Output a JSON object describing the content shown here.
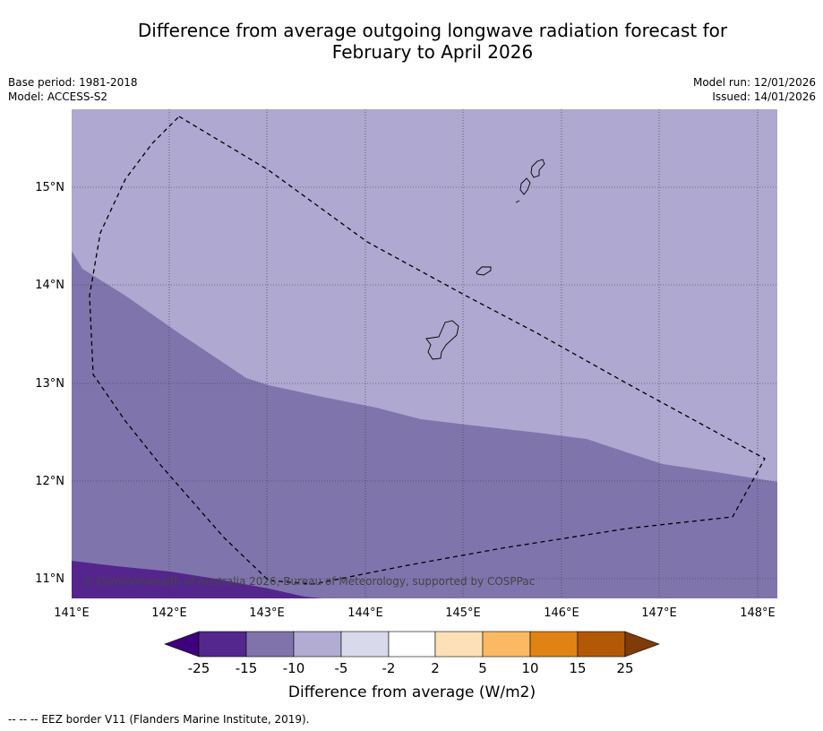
{
  "title_line1": "Difference from average outgoing longwave radiation forecast for",
  "title_line2": "February to April 2026",
  "base_period": "Base period: 1981-2018",
  "model": "Model: ACCESS-S2",
  "model_run": "Model run: 12/01/2026",
  "issued": "Issued: 14/01/2026",
  "copyright": "© Commonwealth of Australia 2026, Bureau of Meteorology, supported by COSPPac",
  "lon_labels": [
    "141°E",
    "142°E",
    "143°E",
    "144°E",
    "145°E",
    "146°E",
    "147°E",
    "148°E"
  ],
  "lat_labels": [
    "15°N",
    "14°N",
    "13°N",
    "12°N",
    "11°N"
  ],
  "colorbar": {
    "label": "Difference from average (W/m2)",
    "ticks": [
      "-25",
      "-15",
      "-10",
      "-5",
      "-2",
      "2",
      "5",
      "10",
      "15",
      "25"
    ],
    "colors": [
      "#3f007d",
      "#54278f",
      "#8073ac",
      "#b2abd2",
      "#d8daeb",
      "#ffffff",
      "#fee0b6",
      "#fdb863",
      "#e08214",
      "#b35806",
      "#7f3b08"
    ]
  },
  "fills": {
    "band_minus_5_to_minus_10": "#afa8d0",
    "band_minus_10_to_minus_15": "#8074ad",
    "band_minus_15_to_minus_25": "#55258e"
  },
  "footer": "--  --  -- EEZ border V11 (Flanders Marine Institute, 2019)."
}
